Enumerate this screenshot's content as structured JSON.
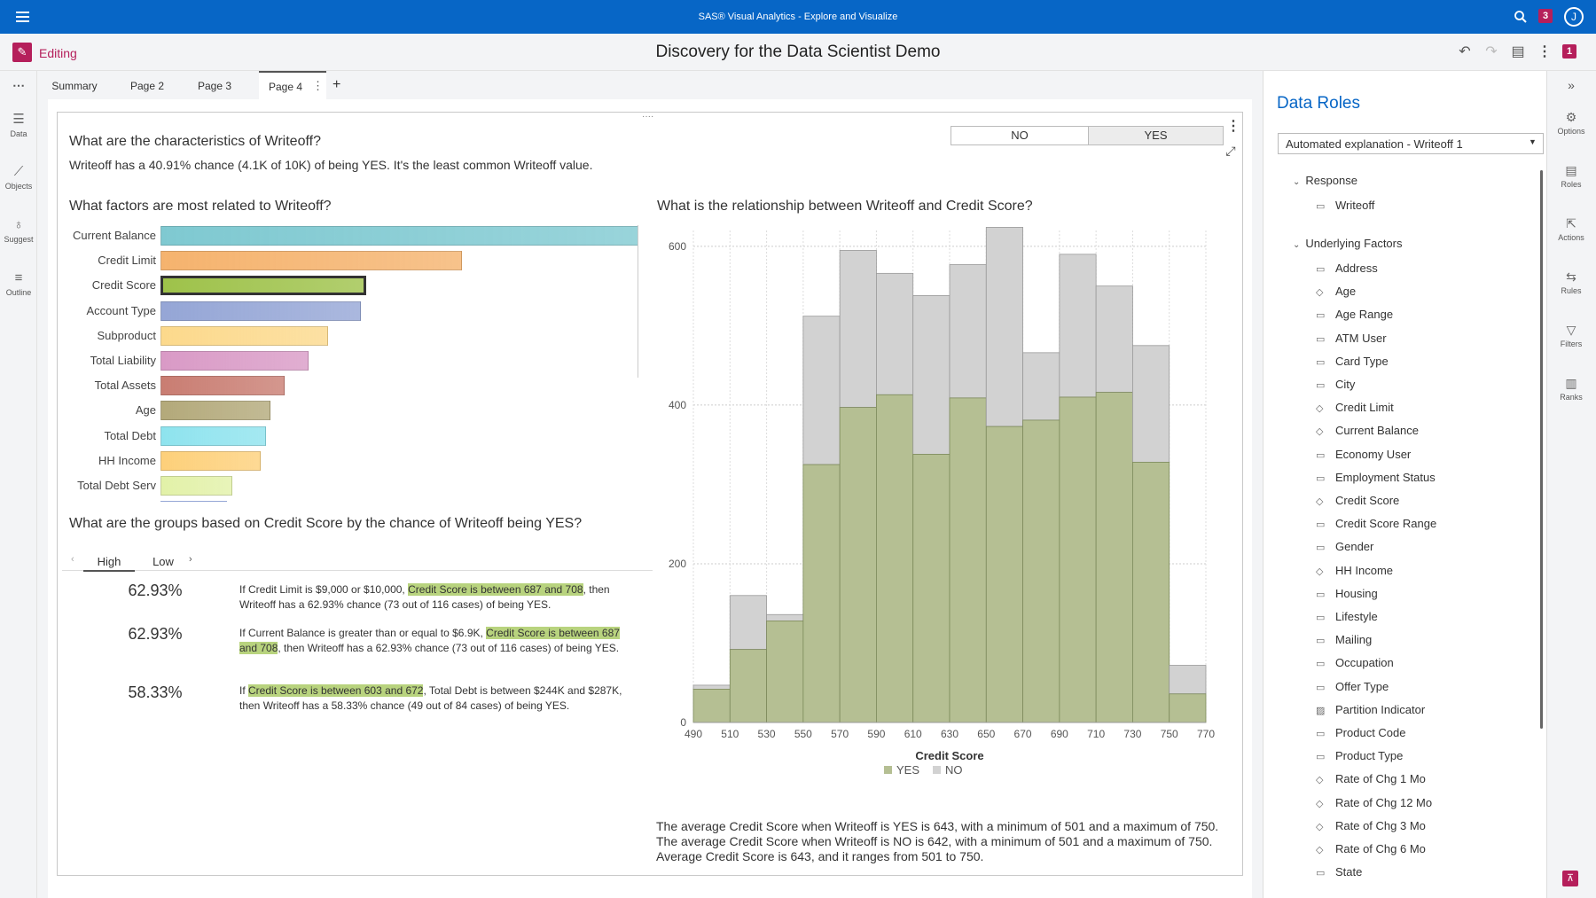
{
  "app": {
    "title": "SAS® Visual Analytics - Explore and Visualize",
    "notif_count": "3",
    "user_initial": "J"
  },
  "toolbar": {
    "edit_label": "Editing",
    "report_title": "Discovery for the Data Scientist Demo",
    "badge": "1"
  },
  "left_rail": [
    {
      "label": "Data",
      "icon": "database-icon"
    },
    {
      "label": "Objects",
      "icon": "chart-icon"
    },
    {
      "label": "Suggest",
      "icon": "lightbulb-icon"
    },
    {
      "label": "Outline",
      "icon": "list-icon"
    }
  ],
  "tabs": [
    "Summary",
    "Page 2",
    "Page 3",
    "Page 4"
  ],
  "active_tab": "Page 4",
  "explain": {
    "q1": "What are the characteristics of Writeoff?",
    "summary": "Writeoff has a 40.91% chance (4.1K of 10K) of being YES. It's the least common Writeoff value.",
    "toggle_no": "NO",
    "toggle_yes": "YES",
    "q2": "What factors are most related to Writeoff?",
    "factors": [
      {
        "label": "Current Balance",
        "value": 1.0,
        "color": "#7fc9d1"
      },
      {
        "label": "Credit Limit",
        "value": 0.63,
        "color": "#f5b36e"
      },
      {
        "label": "Credit Score",
        "value": 0.43,
        "color": "#9ec24a"
      },
      {
        "label": "Account Type",
        "value": 0.42,
        "color": "#95a6d6"
      },
      {
        "label": "Subproduct",
        "value": 0.35,
        "color": "#fcd98c"
      },
      {
        "label": "Total Liability",
        "value": 0.31,
        "color": "#d99ac6"
      },
      {
        "label": "Total Assets",
        "value": 0.26,
        "color": "#c97d72"
      },
      {
        "label": "Age",
        "value": 0.23,
        "color": "#b3a97a"
      },
      {
        "label": "Total Debt",
        "value": 0.22,
        "color": "#8ee3ee"
      },
      {
        "label": "HH Income",
        "value": 0.21,
        "color": "#fdd07a"
      },
      {
        "label": "Total Debt Serv",
        "value": 0.15,
        "color": "#e2f1a8"
      }
    ],
    "q3": "What are the groups based on Credit Score by the chance of Writeoff being YES?",
    "group_tabs": [
      "High",
      "Low"
    ],
    "groups": [
      {
        "pct": "62.93%",
        "pre": "If Credit Limit is $9,000 or $10,000, ",
        "hl": "Credit Score is between 687 and 708",
        "post": ", then Writeoff has a 62.93% chance (73 out of 116 cases) of being YES."
      },
      {
        "pct": "62.93%",
        "pre": "If Current Balance is greater than or equal to $6.9K, ",
        "hl": "Credit Score is between 687 and 708",
        "post": ", then Writeoff has a 62.93% chance (73 out of 116 cases) of being YES."
      },
      {
        "pct": "58.33%",
        "pre": "If ",
        "hl": "Credit Score is between 603 and 672",
        "post": ", Total Debt is between $244K and $287K, then Writeoff has a 58.33% chance (49 out of 84 cases) of being YES."
      }
    ],
    "q4": "What is the relationship between Writeoff and Credit Score?",
    "chart_footnote": "The average Credit Score when Writeoff is YES is 643, with a minimum of 501 and a maximum of 750. The average Credit Score when Writeoff is NO is 642, with a minimum of 501 and a maximum of 750. Average Credit Score is 643, and it ranges from 501 to 750."
  },
  "chart_data": {
    "type": "bar",
    "title": "What is the relationship between Writeoff and Credit Score?",
    "xlabel": "Credit Score",
    "ylabel": "",
    "bin_edges": [
      490,
      510,
      530,
      550,
      570,
      590,
      610,
      630,
      650,
      670,
      690,
      710,
      730,
      750,
      770
    ],
    "ylim": [
      0,
      620
    ],
    "yticks": [
      0,
      200,
      400,
      600
    ],
    "stacked": true,
    "series": [
      {
        "name": "YES",
        "color": "#b5bf93",
        "values": [
          42,
          92,
          128,
          325,
          397,
          413,
          338,
          409,
          373,
          381,
          410,
          416,
          328,
          36
        ]
      },
      {
        "name": "NO",
        "color": "#d2d2d2",
        "values": [
          5,
          68,
          8,
          187,
          198,
          153,
          200,
          168,
          251,
          85,
          180,
          134,
          147,
          36
        ]
      }
    ],
    "legend_position": "bottom"
  },
  "data_roles": {
    "title": "Data Roles",
    "selected_object": "Automated explanation - Writeoff 1",
    "response_header": "Response",
    "response": "Writeoff",
    "factors_header": "Underlying Factors",
    "factors": [
      {
        "name": "Address",
        "type": "category"
      },
      {
        "name": "Age",
        "type": "measure"
      },
      {
        "name": "Age Range",
        "type": "category"
      },
      {
        "name": "ATM User",
        "type": "category"
      },
      {
        "name": "Card Type",
        "type": "category"
      },
      {
        "name": "City",
        "type": "category"
      },
      {
        "name": "Credit Limit",
        "type": "measure"
      },
      {
        "name": "Current Balance",
        "type": "measure"
      },
      {
        "name": "Economy User",
        "type": "category"
      },
      {
        "name": "Employment Status",
        "type": "category"
      },
      {
        "name": "Credit Score",
        "type": "measure"
      },
      {
        "name": "Credit Score Range",
        "type": "category"
      },
      {
        "name": "Gender",
        "type": "category"
      },
      {
        "name": "HH Income",
        "type": "measure"
      },
      {
        "name": "Housing",
        "type": "category"
      },
      {
        "name": "Lifestyle",
        "type": "category"
      },
      {
        "name": "Mailing",
        "type": "category"
      },
      {
        "name": "Occupation",
        "type": "category"
      },
      {
        "name": "Offer Type",
        "type": "category"
      },
      {
        "name": "Partition Indicator",
        "type": "partition"
      },
      {
        "name": "Product Code",
        "type": "category"
      },
      {
        "name": "Product Type",
        "type": "category"
      },
      {
        "name": "Rate of Chg 1 Mo",
        "type": "measure"
      },
      {
        "name": "Rate of Chg 12 Mo",
        "type": "measure"
      },
      {
        "name": "Rate of Chg 3 Mo",
        "type": "measure"
      },
      {
        "name": "Rate of Chg 6 Mo",
        "type": "measure"
      },
      {
        "name": "State",
        "type": "category"
      }
    ]
  },
  "right_rail": [
    {
      "label": "Options",
      "icon": "options-icon"
    },
    {
      "label": "Roles",
      "icon": "roles-icon"
    },
    {
      "label": "Actions",
      "icon": "actions-icon"
    },
    {
      "label": "Rules",
      "icon": "rules-icon"
    },
    {
      "label": "Filters",
      "icon": "filter-icon"
    },
    {
      "label": "Ranks",
      "icon": "ranks-icon"
    }
  ]
}
